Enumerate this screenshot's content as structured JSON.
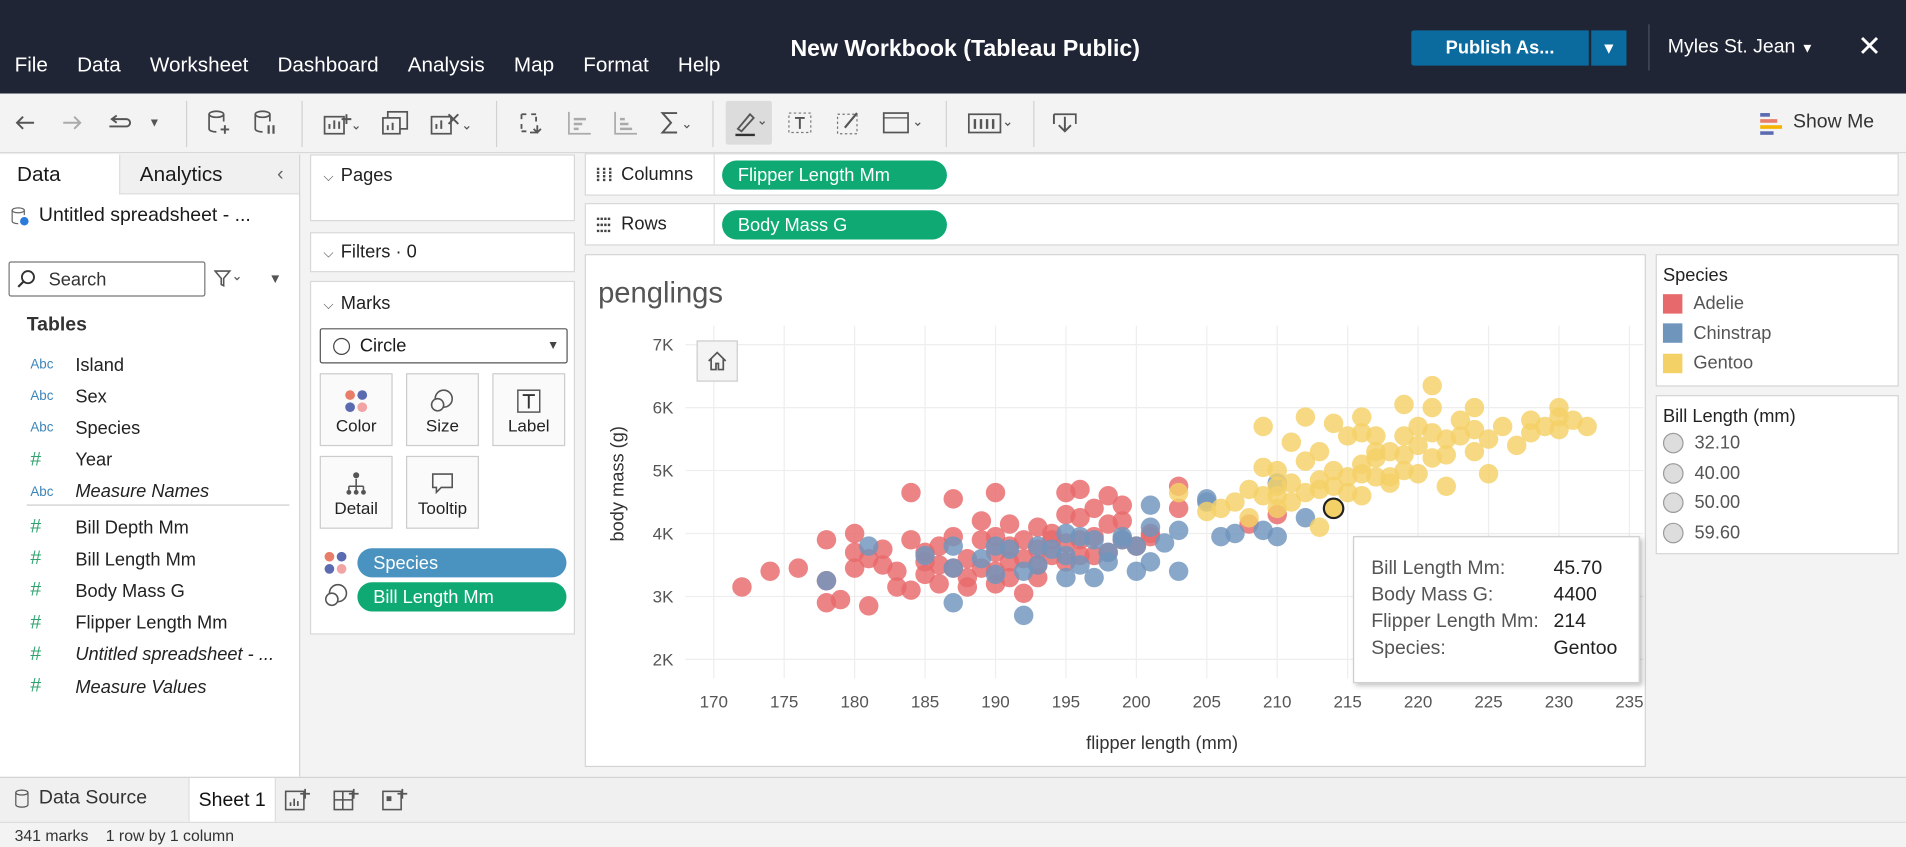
{
  "app": {
    "workbook_title": "New Workbook (Tableau Public)",
    "menu": [
      "File",
      "Data",
      "Worksheet",
      "Dashboard",
      "Analysis",
      "Map",
      "Format",
      "Help"
    ],
    "publish_label": "Publish As...",
    "user_name": "Myles St. Jean",
    "close_glyph": "✕"
  },
  "toolbar": {
    "show_me_label": "Show Me"
  },
  "data_pane": {
    "tab_data": "Data",
    "tab_analytics": "Analytics",
    "datasource": "Untitled spreadsheet - ...",
    "search_placeholder": "Search",
    "tables_heading": "Tables",
    "fields": [
      {
        "type": "Abc",
        "name": "Island"
      },
      {
        "type": "Abc",
        "name": "Sex"
      },
      {
        "type": "Abc",
        "name": "Species"
      },
      {
        "type": "#",
        "name": "Year"
      },
      {
        "type": "Abc",
        "name": "Measure Names"
      },
      {
        "type": "#",
        "name": "Bill Depth Mm"
      },
      {
        "type": "#",
        "name": "Bill Length Mm"
      },
      {
        "type": "#",
        "name": "Body Mass G"
      },
      {
        "type": "#",
        "name": "Flipper Length Mm"
      },
      {
        "type": "#",
        "name": "Untitled spreadsheet - ..."
      },
      {
        "type": "#",
        "name": "Measure Values"
      }
    ]
  },
  "cards": {
    "pages": "Pages",
    "filters": "Filters · 0",
    "marks": "Marks",
    "mark_type": "Circle",
    "buttons": [
      "Color",
      "Size",
      "Label",
      "Detail",
      "Tooltip"
    ],
    "pills": [
      "Species",
      "Bill Length Mm"
    ]
  },
  "shelves": {
    "columns_label": "Columns",
    "columns_pill": "Flipper Length Mm",
    "rows_label": "Rows",
    "rows_pill": "Body Mass G"
  },
  "view": {
    "title": "penglings"
  },
  "tooltip": {
    "rows": [
      {
        "label": "Bill Length Mm:",
        "value": "45.70"
      },
      {
        "label": "Body Mass G:",
        "value": "4400"
      },
      {
        "label": "Flipper Length Mm:",
        "value": "214"
      },
      {
        "label": "Species:",
        "value": "Gentoo"
      }
    ]
  },
  "legends": {
    "species_title": "Species",
    "species": [
      {
        "name": "Adelie",
        "color": "#e8696b"
      },
      {
        "name": "Chinstrap",
        "color": "#6f95bd"
      },
      {
        "name": "Gentoo",
        "color": "#f4d166"
      }
    ],
    "size_title": "Bill Length (mm)",
    "sizes": [
      "32.10",
      "40.00",
      "50.00",
      "59.60"
    ]
  },
  "bottom": {
    "datasource_tab": "Data Source",
    "sheet_tab": "Sheet 1",
    "status_marks": "341 marks",
    "status_dims": "1 row by 1 column"
  },
  "chart_data": {
    "type": "scatter",
    "title": "penglings",
    "xlabel": "flipper length (mm)",
    "ylabel": "body mass (g)",
    "xlim": [
      168,
      236
    ],
    "ylim": [
      1700,
      7300
    ],
    "x_ticks": [
      "170",
      "175",
      "180",
      "185",
      "190",
      "195",
      "200",
      "205",
      "210",
      "215",
      "220",
      "225",
      "230",
      "235"
    ],
    "y_ticks": [
      "2K",
      "3K",
      "4K",
      "5K",
      "6K",
      "7K"
    ],
    "grid": true,
    "series": [
      {
        "name": "Adelie",
        "color": "#e8696b",
        "points": [
          [
            172,
            3150
          ],
          [
            174,
            3400
          ],
          [
            176,
            3450
          ],
          [
            178,
            3900
          ],
          [
            178,
            3250
          ],
          [
            178,
            2900
          ],
          [
            179,
            2950
          ],
          [
            180,
            3700
          ],
          [
            180,
            3450
          ],
          [
            180,
            4000
          ],
          [
            181,
            3600
          ],
          [
            181,
            2850
          ],
          [
            182,
            3500
          ],
          [
            182,
            3750
          ],
          [
            183,
            3150
          ],
          [
            183,
            3400
          ],
          [
            184,
            3900
          ],
          [
            184,
            3100
          ],
          [
            184,
            4650
          ],
          [
            185,
            3550
          ],
          [
            185,
            3700
          ],
          [
            185,
            3350
          ],
          [
            186,
            3500
          ],
          [
            186,
            3800
          ],
          [
            186,
            3200
          ],
          [
            187,
            3450
          ],
          [
            187,
            3950
          ],
          [
            187,
            4550
          ],
          [
            188,
            3300
          ],
          [
            188,
            3600
          ],
          [
            188,
            3150
          ],
          [
            189,
            3900
          ],
          [
            189,
            3450
          ],
          [
            189,
            4200
          ],
          [
            190,
            3700
          ],
          [
            190,
            3400
          ],
          [
            190,
            3950
          ],
          [
            190,
            3200
          ],
          [
            190,
            4650
          ],
          [
            191,
            3800
          ],
          [
            191,
            3550
          ],
          [
            191,
            4150
          ],
          [
            191,
            3300
          ],
          [
            192,
            3600
          ],
          [
            192,
            3900
          ],
          [
            192,
            3050
          ],
          [
            193,
            3750
          ],
          [
            193,
            4100
          ],
          [
            193,
            3500
          ],
          [
            193,
            3300
          ],
          [
            194,
            3650
          ],
          [
            194,
            4000
          ],
          [
            194,
            3900
          ],
          [
            195,
            3550
          ],
          [
            195,
            3850
          ],
          [
            195,
            4300
          ],
          [
            195,
            4650
          ],
          [
            196,
            3650
          ],
          [
            196,
            4250
          ],
          [
            196,
            3900
          ],
          [
            196,
            4700
          ],
          [
            197,
            3950
          ],
          [
            197,
            4400
          ],
          [
            197,
            3650
          ],
          [
            198,
            4150
          ],
          [
            198,
            3700
          ],
          [
            198,
            4600
          ],
          [
            199,
            3900
          ],
          [
            199,
            4200
          ],
          [
            199,
            4450
          ],
          [
            200,
            3800
          ],
          [
            201,
            3950
          ],
          [
            201,
            4000
          ],
          [
            203,
            4400
          ],
          [
            203,
            4750
          ],
          [
            208,
            4150
          ],
          [
            210,
            4300
          ]
        ]
      },
      {
        "name": "Chinstrap",
        "color": "#6f95bd",
        "points": [
          [
            178,
            3250
          ],
          [
            181,
            3800
          ],
          [
            185,
            3650
          ],
          [
            187,
            2900
          ],
          [
            187,
            3450
          ],
          [
            187,
            3800
          ],
          [
            189,
            3600
          ],
          [
            190,
            3350
          ],
          [
            190,
            3800
          ],
          [
            191,
            3750
          ],
          [
            192,
            2700
          ],
          [
            192,
            3400
          ],
          [
            193,
            3500
          ],
          [
            193,
            3800
          ],
          [
            194,
            3750
          ],
          [
            195,
            3650
          ],
          [
            195,
            3300
          ],
          [
            195,
            4000
          ],
          [
            196,
            3950
          ],
          [
            196,
            3500
          ],
          [
            197,
            3300
          ],
          [
            197,
            3900
          ],
          [
            198,
            3550
          ],
          [
            198,
            3700
          ],
          [
            199,
            3900
          ],
          [
            199,
            3950
          ],
          [
            200,
            3800
          ],
          [
            200,
            3400
          ],
          [
            201,
            3550
          ],
          [
            201,
            4100
          ],
          [
            201,
            4450
          ],
          [
            202,
            3850
          ],
          [
            203,
            3400
          ],
          [
            203,
            4050
          ],
          [
            205,
            4550
          ],
          [
            205,
            4500
          ],
          [
            206,
            3950
          ],
          [
            207,
            4000
          ],
          [
            209,
            4050
          ],
          [
            210,
            3950
          ],
          [
            210,
            4800
          ],
          [
            212,
            4250
          ]
        ]
      },
      {
        "name": "Gentoo",
        "color": "#f4d166",
        "points": [
          [
            203,
            4650
          ],
          [
            206,
            4400
          ],
          [
            208,
            4250
          ],
          [
            208,
            4700
          ],
          [
            209,
            5050
          ],
          [
            209,
            4600
          ],
          [
            210,
            4750
          ],
          [
            210,
            4400
          ],
          [
            210,
            5000
          ],
          [
            211,
            4500
          ],
          [
            211,
            4800
          ],
          [
            212,
            4650
          ],
          [
            212,
            5150
          ],
          [
            213,
            4700
          ],
          [
            213,
            5300
          ],
          [
            213,
            4850
          ],
          [
            214,
            4400
          ],
          [
            214,
            5000
          ],
          [
            214,
            4750
          ],
          [
            215,
            4900
          ],
          [
            215,
            5550
          ],
          [
            215,
            4650
          ],
          [
            216,
            4950
          ],
          [
            216,
            5100
          ],
          [
            216,
            5600
          ],
          [
            216,
            4600
          ],
          [
            217,
            4900
          ],
          [
            217,
            5200
          ],
          [
            217,
            5550
          ],
          [
            218,
            4800
          ],
          [
            218,
            5300
          ],
          [
            218,
            4900
          ],
          [
            219,
            5250
          ],
          [
            219,
            5000
          ],
          [
            219,
            5550
          ],
          [
            220,
            5400
          ],
          [
            220,
            5700
          ],
          [
            220,
            4950
          ],
          [
            221,
            5200
          ],
          [
            221,
            5600
          ],
          [
            221,
            6000
          ],
          [
            222,
            5250
          ],
          [
            222,
            5500
          ],
          [
            222,
            4750
          ],
          [
            223,
            5550
          ],
          [
            223,
            5800
          ],
          [
            224,
            5300
          ],
          [
            224,
            5650
          ],
          [
            225,
            5500
          ],
          [
            225,
            4950
          ],
          [
            226,
            5700
          ],
          [
            227,
            5400
          ],
          [
            228,
            5600
          ],
          [
            228,
            5800
          ],
          [
            229,
            5700
          ],
          [
            230,
            5850
          ],
          [
            230,
            6000
          ],
          [
            230,
            5650
          ],
          [
            231,
            5800
          ],
          [
            232,
            5700
          ],
          [
            211,
            5450
          ],
          [
            212,
            5850
          ],
          [
            214,
            5750
          ],
          [
            216,
            5850
          ],
          [
            217,
            5300
          ],
          [
            219,
            6050
          ],
          [
            221,
            6350
          ],
          [
            224,
            6000
          ],
          [
            209,
            5700
          ],
          [
            213,
            4100
          ],
          [
            210,
            4600
          ],
          [
            205,
            4350
          ],
          [
            207,
            4500
          ]
        ]
      }
    ],
    "highlighted_point": {
      "x": 214,
      "y": 4400,
      "species": "Gentoo"
    }
  }
}
